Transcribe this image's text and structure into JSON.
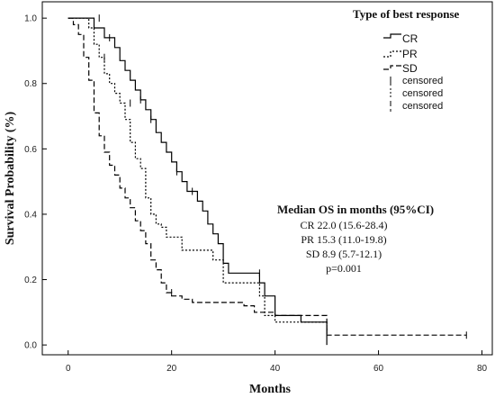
{
  "chart_data": {
    "type": "line",
    "subtype": "kaplan-meier",
    "xlabel": "Months",
    "ylabel": "Survival Probability (%)",
    "xlim": [
      -5,
      82
    ],
    "ylim": [
      -0.03,
      1.05
    ],
    "x_ticks": [
      0,
      20,
      40,
      60,
      80
    ],
    "y_ticks": [
      0.0,
      0.2,
      0.4,
      0.6,
      0.8,
      1.0
    ],
    "x_tick_labels": [
      "0",
      "20",
      "40",
      "60",
      "80"
    ],
    "y_tick_labels": [
      "0.0",
      "0.2",
      "0.4",
      "0.6",
      "0.8",
      "1.0"
    ],
    "grid": false,
    "legend": {
      "title": "Type of best response",
      "position": "top-right",
      "entries": [
        "CR",
        "PR",
        "SD"
      ],
      "censored_entries": [
        "censored",
        "censored",
        "censored"
      ]
    },
    "series": [
      {
        "name": "CR",
        "style": "solid",
        "steps": [
          [
            0,
            1.0
          ],
          [
            5,
            0.97
          ],
          [
            7,
            0.94
          ],
          [
            9,
            0.91
          ],
          [
            10,
            0.87
          ],
          [
            11,
            0.84
          ],
          [
            12,
            0.81
          ],
          [
            13,
            0.78
          ],
          [
            14,
            0.75
          ],
          [
            15,
            0.72
          ],
          [
            16,
            0.69
          ],
          [
            17,
            0.65
          ],
          [
            18,
            0.62
          ],
          [
            19,
            0.59
          ],
          [
            20,
            0.56
          ],
          [
            21,
            0.53
          ],
          [
            22,
            0.5
          ],
          [
            23,
            0.47
          ],
          [
            25,
            0.44
          ],
          [
            26,
            0.41
          ],
          [
            27,
            0.37
          ],
          [
            28,
            0.34
          ],
          [
            29,
            0.31
          ],
          [
            30,
            0.25
          ],
          [
            31,
            0.22
          ],
          [
            37,
            0.19
          ],
          [
            38,
            0.15
          ],
          [
            40,
            0.09
          ],
          [
            45,
            0.07
          ],
          [
            50,
            0.0
          ]
        ],
        "censored": [
          [
            6,
            1.0
          ],
          [
            8,
            0.94
          ],
          [
            14,
            0.75
          ],
          [
            16,
            0.69
          ],
          [
            21,
            0.53
          ],
          [
            24,
            0.47
          ],
          [
            37,
            0.22
          ]
        ]
      },
      {
        "name": "PR",
        "style": "dotted",
        "steps": [
          [
            0,
            1.0
          ],
          [
            4,
            0.97
          ],
          [
            5,
            0.92
          ],
          [
            6,
            0.88
          ],
          [
            7,
            0.83
          ],
          [
            8,
            0.8
          ],
          [
            9,
            0.77
          ],
          [
            10,
            0.74
          ],
          [
            11,
            0.69
          ],
          [
            12,
            0.62
          ],
          [
            13,
            0.57
          ],
          [
            14,
            0.54
          ],
          [
            15,
            0.45
          ],
          [
            16,
            0.4
          ],
          [
            17,
            0.37
          ],
          [
            18,
            0.36
          ],
          [
            19,
            0.33
          ],
          [
            22,
            0.29
          ],
          [
            28,
            0.26
          ],
          [
            30,
            0.19
          ],
          [
            37,
            0.15
          ],
          [
            38,
            0.09
          ],
          [
            40,
            0.07
          ],
          [
            50,
            0.03
          ]
        ],
        "censored": [
          [
            7,
            0.88
          ],
          [
            12,
            0.74
          ]
        ]
      },
      {
        "name": "SD",
        "style": "dashed",
        "steps": [
          [
            0,
            1.0
          ],
          [
            1,
            0.98
          ],
          [
            2,
            0.95
          ],
          [
            3,
            0.88
          ],
          [
            4,
            0.81
          ],
          [
            5,
            0.71
          ],
          [
            6,
            0.64
          ],
          [
            7,
            0.59
          ],
          [
            8,
            0.55
          ],
          [
            9,
            0.52
          ],
          [
            10,
            0.48
          ],
          [
            11,
            0.45
          ],
          [
            12,
            0.42
          ],
          [
            13,
            0.38
          ],
          [
            14,
            0.35
          ],
          [
            15,
            0.31
          ],
          [
            16,
            0.26
          ],
          [
            17,
            0.23
          ],
          [
            18,
            0.19
          ],
          [
            19,
            0.16
          ],
          [
            20,
            0.15
          ],
          [
            22,
            0.14
          ],
          [
            24,
            0.13
          ],
          [
            34,
            0.12
          ],
          [
            36,
            0.1
          ],
          [
            40,
            0.09
          ],
          [
            50,
            0.03
          ],
          [
            77,
            0.03
          ]
        ],
        "censored": [
          [
            20,
            0.16
          ],
          [
            77,
            0.03
          ]
        ]
      }
    ],
    "annotation": {
      "title": "Median OS in months (95%CI)",
      "lines": [
        "CR 22.0 (15.6-28.4)",
        "PR 15.3 (11.0-19.8)",
        "SD 8.9 (5.7-12.1)",
        "p=0.001"
      ]
    }
  }
}
